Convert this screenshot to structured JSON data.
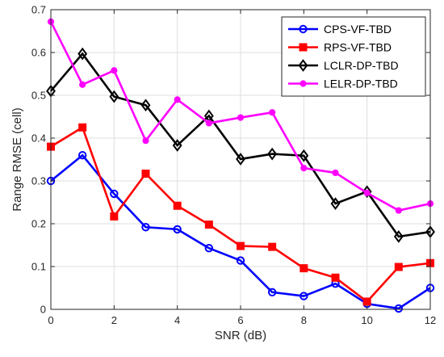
{
  "chart_data": {
    "type": "line",
    "xlabel": "SNR (dB)",
    "ylabel": "Range RMSE (cell)",
    "xlim": [
      0,
      12
    ],
    "ylim": [
      0,
      0.7
    ],
    "xticks": [
      "0",
      "2",
      "4",
      "6",
      "8",
      "10",
      "12"
    ],
    "yticks": [
      "0",
      "0.1",
      "0.2",
      "0.3",
      "0.4",
      "0.5",
      "0.6",
      "0.7"
    ],
    "grid": true,
    "legend_position": "top-right",
    "x": [
      0,
      1,
      2,
      3,
      4,
      5,
      6,
      7,
      8,
      9,
      10,
      11,
      12
    ],
    "series": [
      {
        "name": "CPS-VF-TBD",
        "color": "#0000ff",
        "marker": "circle",
        "values": [
          0.3,
          0.36,
          0.27,
          0.192,
          0.187,
          0.143,
          0.114,
          0.04,
          0.031,
          0.06,
          0.013,
          0.002,
          0.05
        ]
      },
      {
        "name": "RPS-VF-TBD",
        "color": "#ff0000",
        "marker": "square",
        "values": [
          0.38,
          0.425,
          0.217,
          0.317,
          0.242,
          0.198,
          0.148,
          0.146,
          0.096,
          0.074,
          0.018,
          0.099,
          0.108
        ]
      },
      {
        "name": "LCLR-DP-TBD",
        "color": "#000000",
        "marker": "diamond",
        "values": [
          0.51,
          0.597,
          0.497,
          0.477,
          0.383,
          0.452,
          0.351,
          0.363,
          0.359,
          0.247,
          0.275,
          0.17,
          0.181
        ]
      },
      {
        "name": "LELR-DP-TBD",
        "color": "#ff00ff",
        "marker": "dot",
        "values": [
          0.672,
          0.525,
          0.558,
          0.394,
          0.49,
          0.435,
          0.448,
          0.46,
          0.33,
          0.319,
          0.272,
          0.231,
          0.247
        ]
      }
    ]
  }
}
